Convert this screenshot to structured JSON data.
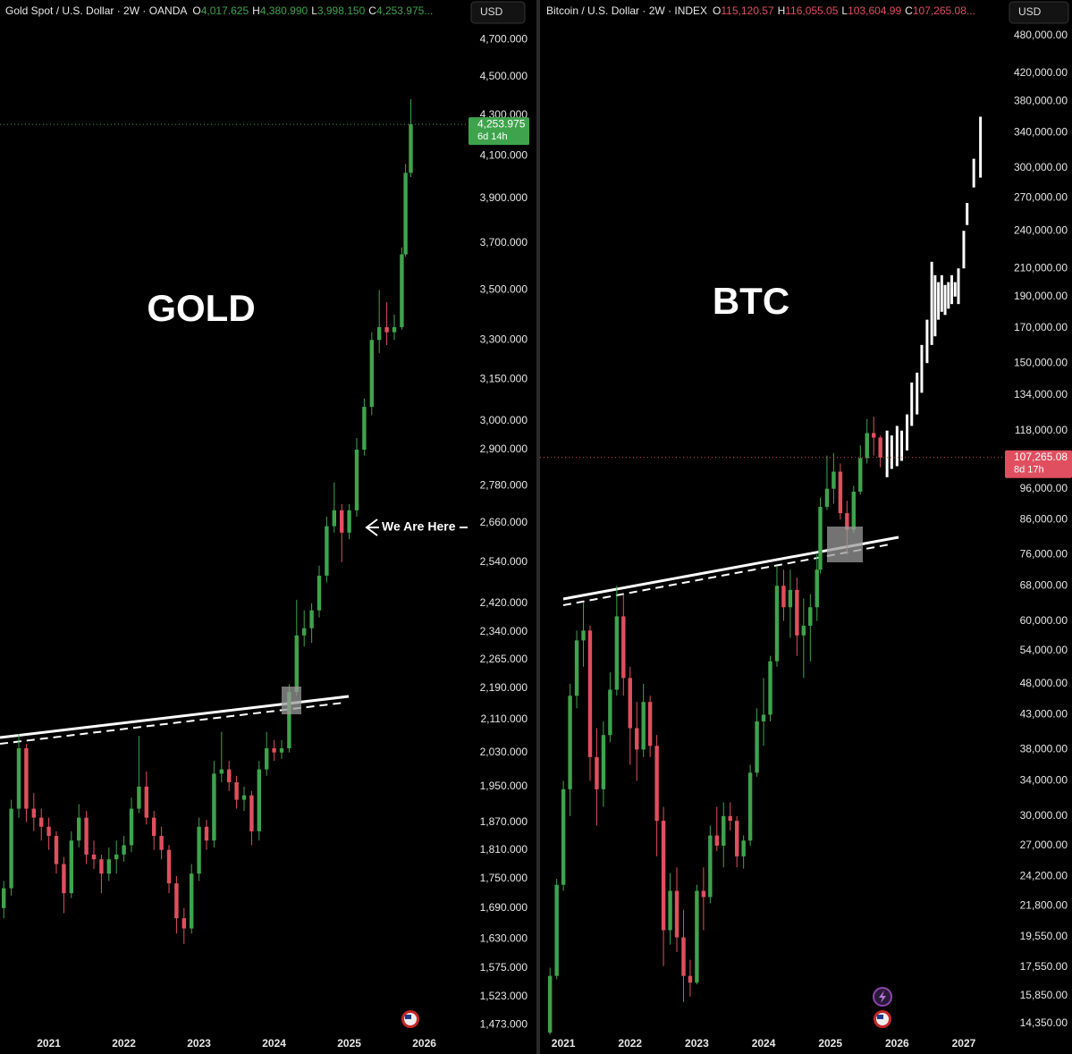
{
  "chart_data": [
    {
      "type": "candlestick",
      "title": "Gold Spot / U.S. Dollar · 2W · OANDA",
      "ohlc_header": [
        {
          "key": "O",
          "value": "4,017.625"
        },
        {
          "key": "H",
          "value": "4,380.990"
        },
        {
          "key": "L",
          "value": "3,998.150"
        },
        {
          "key": "C",
          "value": "4,253.975..."
        }
      ],
      "currency": "USD",
      "annotation": "GOLD",
      "note": "We Are Here",
      "log_scale": true,
      "up_color": "#3fa34d",
      "down_color": "#e04f5f",
      "last_price": {
        "label": "4,253.975",
        "countdown": "6d 14h"
      },
      "xlim": [
        2020.35,
        2026.6
      ],
      "ylim": [
        1455,
        4925
      ],
      "xticks": [
        2021,
        2022,
        2023,
        2024,
        2025,
        2026
      ],
      "yticks": [
        {
          "value": 4700,
          "label": "4,700.000"
        },
        {
          "value": 4500,
          "label": "4,500.000"
        },
        {
          "value": 4300,
          "label": "4,300.000"
        },
        {
          "value": 4100,
          "label": "4,100.000"
        },
        {
          "value": 3900,
          "label": "3,900.000"
        },
        {
          "value": 3700,
          "label": "3,700.000"
        },
        {
          "value": 3500,
          "label": "3,500.000"
        },
        {
          "value": 3300,
          "label": "3,300.000"
        },
        {
          "value": 3150,
          "label": "3,150.000"
        },
        {
          "value": 3000,
          "label": "3,000.000"
        },
        {
          "value": 2900,
          "label": "2,900.000"
        },
        {
          "value": 2780,
          "label": "2,780.000"
        },
        {
          "value": 2660,
          "label": "2,660.000"
        },
        {
          "value": 2540,
          "label": "2,540.000"
        },
        {
          "value": 2420,
          "label": "2,420.000"
        },
        {
          "value": 2340,
          "label": "2,340.000"
        },
        {
          "value": 2265,
          "label": "2,265.000"
        },
        {
          "value": 2190,
          "label": "2,190.000"
        },
        {
          "value": 2110,
          "label": "2,110.000"
        },
        {
          "value": 2030,
          "label": "2,030.000"
        },
        {
          "value": 1950,
          "label": "1,950.000"
        },
        {
          "value": 1870,
          "label": "1,870.000"
        },
        {
          "value": 1810,
          "label": "1,810.000"
        },
        {
          "value": 1750,
          "label": "1,750.000"
        },
        {
          "value": 1690,
          "label": "1,690.000"
        },
        {
          "value": 1630,
          "label": "1,630.000"
        },
        {
          "value": 1575,
          "label": "1,575.000"
        },
        {
          "value": 1523,
          "label": "1,523.000"
        },
        {
          "value": 1473,
          "label": "1,473.000"
        }
      ],
      "x": [
        2020.4,
        2020.5,
        2020.6,
        2020.7,
        2020.8,
        2020.9,
        2021.0,
        2021.1,
        2021.2,
        2021.3,
        2021.4,
        2021.5,
        2021.6,
        2021.7,
        2021.8,
        2021.9,
        2022.0,
        2022.1,
        2022.2,
        2022.3,
        2022.4,
        2022.5,
        2022.6,
        2022.7,
        2022.8,
        2022.9,
        2023.0,
        2023.1,
        2023.2,
        2023.3,
        2023.4,
        2023.5,
        2023.6,
        2023.7,
        2023.8,
        2023.9,
        2024.0,
        2024.1,
        2024.2,
        2024.3,
        2024.4,
        2024.5,
        2024.6,
        2024.7,
        2024.8,
        2024.9,
        2025.0,
        2025.1,
        2025.2,
        2025.3,
        2025.4,
        2025.5,
        2025.6,
        2025.7,
        2025.75,
        2025.82
      ],
      "open": [
        1690,
        1730,
        1900,
        2040,
        1900,
        1880,
        1860,
        1840,
        1780,
        1720,
        1830,
        1880,
        1800,
        1790,
        1760,
        1790,
        1800,
        1820,
        1900,
        1950,
        1880,
        1840,
        1810,
        1740,
        1670,
        1650,
        1760,
        1860,
        1830,
        1980,
        1990,
        1960,
        1920,
        1930,
        1850,
        1990,
        2040,
        2030,
        2040,
        2180,
        2330,
        2350,
        2400,
        2500,
        2650,
        2700,
        2630,
        2700,
        2900,
        3050,
        3300,
        3350,
        3330,
        3350,
        3650,
        4017.625
      ],
      "high": [
        1745,
        1920,
        2075,
        2050,
        1935,
        1900,
        1880,
        1850,
        1795,
        1850,
        1910,
        1895,
        1830,
        1800,
        1815,
        1830,
        1840,
        1925,
        2070,
        1985,
        1895,
        1860,
        1820,
        1755,
        1690,
        1780,
        1880,
        1875,
        2010,
        2080,
        2010,
        1975,
        1950,
        1940,
        2010,
        2080,
        2060,
        2060,
        2200,
        2430,
        2400,
        2420,
        2530,
        2680,
        2790,
        2720,
        2720,
        2940,
        3080,
        3330,
        3500,
        3450,
        3400,
        3680,
        4060,
        4380.99
      ],
      "low": [
        1670,
        1715,
        1880,
        1870,
        1850,
        1830,
        1810,
        1760,
        1680,
        1710,
        1815,
        1780,
        1770,
        1720,
        1745,
        1760,
        1785,
        1805,
        1890,
        1865,
        1810,
        1790,
        1720,
        1640,
        1620,
        1640,
        1745,
        1810,
        1815,
        1960,
        1940,
        1900,
        1895,
        1820,
        1830,
        1975,
        2010,
        2015,
        2030,
        2170,
        2300,
        2310,
        2380,
        2480,
        2630,
        2540,
        2610,
        2680,
        2880,
        3020,
        3250,
        3280,
        3300,
        3340,
        3640,
        3998.15
      ],
      "close": [
        1730,
        1900,
        2040,
        1900,
        1880,
        1860,
        1840,
        1780,
        1720,
        1830,
        1880,
        1800,
        1790,
        1760,
        1790,
        1800,
        1820,
        1900,
        1950,
        1880,
        1840,
        1810,
        1740,
        1670,
        1650,
        1760,
        1860,
        1830,
        1980,
        1990,
        1960,
        1920,
        1930,
        1850,
        1990,
        2040,
        2030,
        2040,
        2180,
        2330,
        2350,
        2400,
        2500,
        2650,
        2700,
        2630,
        2700,
        2900,
        3050,
        3300,
        3350,
        3330,
        3350,
        3650,
        4017.625,
        4253.975
      ]
    },
    {
      "type": "candlestick",
      "title": "Bitcoin / U.S. Dollar · 2W · INDEX",
      "ohlc_header": [
        {
          "key": "O",
          "value": "115,120.57"
        },
        {
          "key": "H",
          "value": "116,055.05"
        },
        {
          "key": "L",
          "value": "103,604.99"
        },
        {
          "key": "C",
          "value": "107,265.08..."
        }
      ],
      "currency": "USD",
      "annotation": "BTC",
      "log_scale": true,
      "up_color": "#3fa34d",
      "down_color": "#e04f5f",
      "last_price": {
        "label": "107,265.08",
        "countdown": "8d 17h"
      },
      "xlim": [
        2020.65,
        2027.59
      ],
      "ylim": [
        13770,
        545000
      ],
      "xticks": [
        2021,
        2022,
        2023,
        2024,
        2025,
        2026,
        2027
      ],
      "yticks": [
        {
          "value": 480000,
          "label": "480,000.00"
        },
        {
          "value": 420000,
          "label": "420,000.00"
        },
        {
          "value": 380000,
          "label": "380,000.00"
        },
        {
          "value": 340000,
          "label": "340,000.00"
        },
        {
          "value": 300000,
          "label": "300,000.00"
        },
        {
          "value": 270000,
          "label": "270,000.00"
        },
        {
          "value": 240000,
          "label": "240,000.00"
        },
        {
          "value": 210000,
          "label": "210,000.00"
        },
        {
          "value": 190000,
          "label": "190,000.00"
        },
        {
          "value": 170000,
          "label": "170,000.00"
        },
        {
          "value": 150000,
          "label": "150,000.00"
        },
        {
          "value": 134000,
          "label": "134,000.00"
        },
        {
          "value": 118000,
          "label": "118,000.00"
        },
        {
          "value": 96000,
          "label": "96,000.00"
        },
        {
          "value": 86000,
          "label": "86,000.00"
        },
        {
          "value": 76000,
          "label": "76,000.00"
        },
        {
          "value": 68000,
          "label": "68,000.00"
        },
        {
          "value": 60000,
          "label": "60,000.00"
        },
        {
          "value": 54000,
          "label": "54,000.00"
        },
        {
          "value": 48000,
          "label": "48,000.00"
        },
        {
          "value": 43000,
          "label": "43,000.00"
        },
        {
          "value": 38000,
          "label": "38,000.00"
        },
        {
          "value": 34000,
          "label": "34,000.00"
        },
        {
          "value": 30000,
          "label": "30,000.00"
        },
        {
          "value": 27000,
          "label": "27,000.00"
        },
        {
          "value": 24200,
          "label": "24,200.00"
        },
        {
          "value": 21800,
          "label": "21,800.00"
        },
        {
          "value": 19550,
          "label": "19,550.00"
        },
        {
          "value": 17550,
          "label": "17,550.00"
        },
        {
          "value": 15850,
          "label": "15,850.00"
        },
        {
          "value": 14350,
          "label": "14,350.00"
        }
      ],
      "x": [
        2020.8,
        2020.9,
        2021.0,
        2021.1,
        2021.2,
        2021.3,
        2021.4,
        2021.5,
        2021.6,
        2021.7,
        2021.8,
        2021.9,
        2022.0,
        2022.1,
        2022.2,
        2022.3,
        2022.4,
        2022.5,
        2022.6,
        2022.7,
        2022.8,
        2022.9,
        2023.0,
        2023.1,
        2023.2,
        2023.3,
        2023.4,
        2023.5,
        2023.6,
        2023.7,
        2023.8,
        2023.9,
        2024.0,
        2024.1,
        2024.2,
        2024.3,
        2024.4,
        2024.5,
        2024.6,
        2024.7,
        2024.8,
        2024.85,
        2024.95,
        2025.05,
        2025.15,
        2025.25,
        2025.35,
        2025.45,
        2025.55,
        2025.65,
        2025.75
      ],
      "open": [
        13900,
        17000,
        23500,
        33000,
        46000,
        56000,
        58000,
        37000,
        33000,
        40000,
        47000,
        61000,
        49000,
        41000,
        38000,
        45000,
        38500,
        29500,
        20000,
        23000,
        19500,
        17000,
        16600,
        23000,
        22500,
        28000,
        27000,
        30000,
        29500,
        26000,
        27500,
        35000,
        42000,
        43000,
        52000,
        68000,
        63000,
        67000,
        57000,
        59000,
        63000,
        72000,
        90000,
        96000,
        102000,
        88000,
        83000,
        95000,
        107000,
        117000,
        115120.57
      ],
      "high": [
        17500,
        24000,
        34000,
        48000,
        58000,
        64000,
        59000,
        41000,
        42000,
        50000,
        68000,
        66000,
        51000,
        45000,
        48000,
        46000,
        40000,
        31000,
        24500,
        25000,
        21500,
        18000,
        23500,
        25000,
        29000,
        31000,
        31500,
        31500,
        30000,
        28000,
        36000,
        44000,
        49000,
        53000,
        73000,
        72000,
        72000,
        70000,
        65000,
        66000,
        76000,
        93000,
        108000,
        109000,
        105000,
        92000,
        97000,
        112000,
        123000,
        124000,
        116055.05
      ],
      "low": [
        13800,
        16800,
        23000,
        30000,
        44000,
        51000,
        34000,
        29000,
        31000,
        39000,
        46000,
        46000,
        36000,
        34000,
        37000,
        37000,
        26000,
        17600,
        19000,
        18500,
        15500,
        15800,
        16500,
        20000,
        22000,
        26500,
        25000,
        28500,
        25000,
        24900,
        27000,
        34500,
        38500,
        42000,
        51000,
        60000,
        56500,
        53000,
        49000,
        52000,
        60000,
        71000,
        89000,
        91000,
        86000,
        76000,
        82000,
        94000,
        105000,
        108000,
        103604.99
      ],
      "close": [
        17000,
        23500,
        33000,
        46000,
        56000,
        58000,
        37000,
        33000,
        40000,
        47000,
        61000,
        49000,
        41000,
        38000,
        45000,
        38500,
        29500,
        20000,
        23000,
        19500,
        17000,
        16600,
        23000,
        22500,
        28000,
        27000,
        30000,
        29500,
        26000,
        27500,
        35000,
        42000,
        43000,
        52000,
        68000,
        63000,
        67000,
        57000,
        59000,
        63000,
        72000,
        90000,
        96000,
        102000,
        88000,
        83000,
        95000,
        107000,
        117000,
        115120.57,
        107265.08
      ],
      "projection": {
        "color": "#ffffff",
        "x": [
          2025.85,
          2025.92,
          2026.0,
          2026.07,
          2026.15,
          2026.22,
          2026.3,
          2026.37,
          2026.45,
          2026.52,
          2026.57,
          2026.62,
          2026.67,
          2026.72,
          2026.77,
          2026.82,
          2026.87,
          2026.92,
          2027.0,
          2027.05,
          2027.15,
          2027.25
        ],
        "high": [
          118000,
          116000,
          120000,
          118000,
          125000,
          140000,
          145000,
          160000,
          175000,
          215000,
          205000,
          200000,
          205000,
          198000,
          200000,
          205000,
          200000,
          210000,
          240000,
          265000,
          310000,
          360000
        ],
        "low": [
          100000,
          103000,
          104000,
          106000,
          110000,
          120000,
          125000,
          135000,
          150000,
          160000,
          165000,
          175000,
          180000,
          178000,
          182000,
          185000,
          190000,
          185000,
          210000,
          245000,
          280000,
          290000
        ]
      }
    }
  ]
}
